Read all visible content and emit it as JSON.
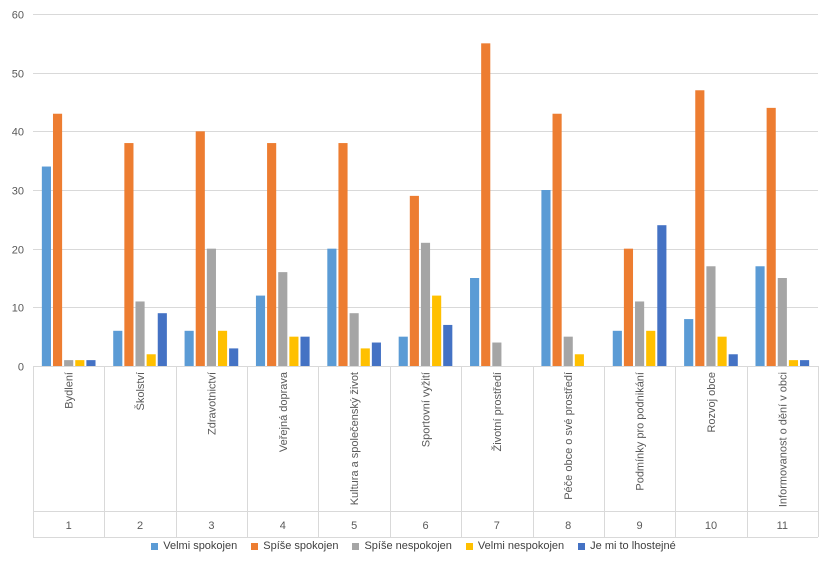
{
  "chart_data": {
    "type": "bar",
    "ylim": [
      0,
      60
    ],
    "yticks": [
      0,
      10,
      20,
      30,
      40,
      50,
      60
    ],
    "grid": true,
    "legend_position": "bottom",
    "categories": [
      {
        "label": "Bydlení",
        "number": "1"
      },
      {
        "label": "Školství",
        "number": "2"
      },
      {
        "label": "Zdravotnictví",
        "number": "3"
      },
      {
        "label": "Veřejná doprava",
        "number": "4"
      },
      {
        "label": "Kultura a společenský život",
        "number": "5"
      },
      {
        "label": "Sportovní vyžití",
        "number": "6"
      },
      {
        "label": "Životní prostředí",
        "number": "7"
      },
      {
        "label": "Péče obce o své prostředí",
        "number": "8"
      },
      {
        "label": "Podmínky pro podnikání",
        "number": "9"
      },
      {
        "label": "Rozvoj obce",
        "number": "10"
      },
      {
        "label": "Informovanost o dění v obci",
        "number": "11"
      }
    ],
    "series": [
      {
        "name": "Velmi spokojen",
        "color": "#5B9BD5",
        "values": [
          34,
          6,
          6,
          12,
          20,
          5,
          15,
          30,
          6,
          8,
          17
        ]
      },
      {
        "name": "Spíše spokojen",
        "color": "#ED7D31",
        "values": [
          43,
          38,
          40,
          38,
          38,
          29,
          55,
          43,
          20,
          47,
          44
        ]
      },
      {
        "name": "Spíše nespokojen",
        "color": "#A5A5A5",
        "values": [
          1,
          11,
          20,
          16,
          9,
          21,
          4,
          5,
          11,
          17,
          15
        ]
      },
      {
        "name": "Velmi nespokojen",
        "color": "#FFC000",
        "values": [
          1,
          2,
          6,
          5,
          3,
          12,
          0,
          2,
          6,
          5,
          1
        ]
      },
      {
        "name": "Je mi to lhostejné",
        "color": "#4472C4",
        "values": [
          1,
          9,
          3,
          5,
          4,
          7,
          0,
          0,
          24,
          2,
          1
        ]
      }
    ]
  }
}
